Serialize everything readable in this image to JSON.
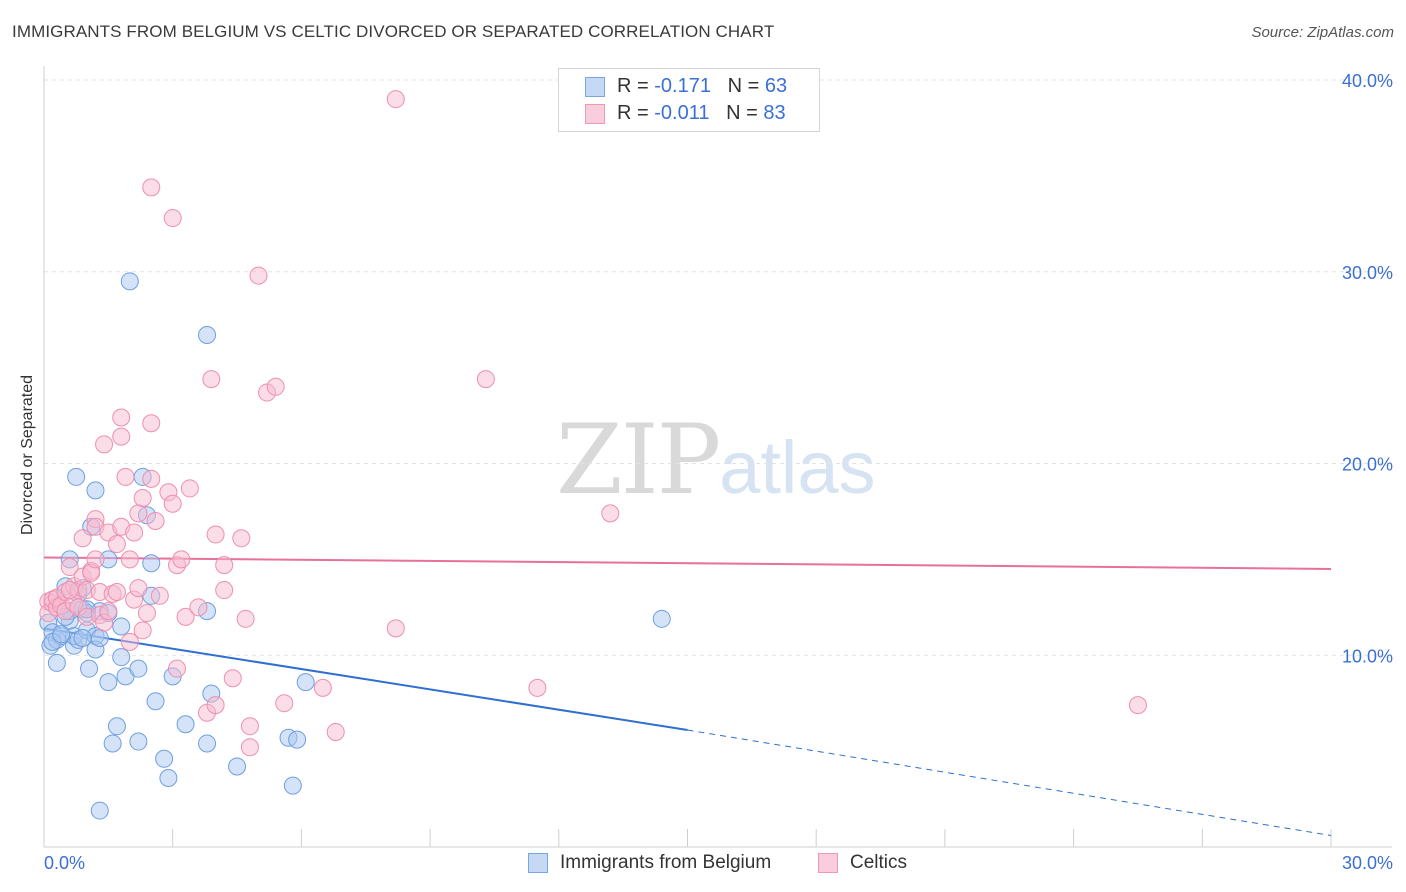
{
  "title": "IMMIGRANTS FROM BELGIUM VS CELTIC DIVORCED OR SEPARATED CORRELATION CHART",
  "source": "Source: ZipAtlas.com",
  "watermark": {
    "zip": "ZIP",
    "atlas": "atlas"
  },
  "legend_top": [
    {
      "r_label": "R = ",
      "r_value": "-0.171",
      "n_label": "N = ",
      "n_value": "63"
    },
    {
      "r_label": "R = ",
      "r_value": "-0.011",
      "n_label": "N = ",
      "n_value": "83"
    }
  ],
  "legend_bottom": [
    "Immigrants from Belgium",
    "Celtics"
  ],
  "colors": {
    "blue_fill": "#a9c8f0",
    "blue_stroke": "#6f9fe0",
    "blue_line": "#2e6fd0",
    "pink_fill": "#f8bcd0",
    "pink_stroke": "#ee8fae",
    "pink_line": "#e8709a",
    "tick_label": "#3b6fd4",
    "grid": "#e2e2e2"
  },
  "chart_data": {
    "type": "scatter",
    "title": "IMMIGRANTS FROM BELGIUM VS CELTIC DIVORCED OR SEPARATED CORRELATION CHART",
    "xlabel": "",
    "ylabel": "Divorced or Separated",
    "xlim": [
      0,
      30
    ],
    "ylim": [
      0,
      40
    ],
    "x_tick_labels": [
      "0.0%",
      "30.0%"
    ],
    "y_ticks": [
      10,
      20,
      30,
      40
    ],
    "y_tick_labels": [
      "10.0%",
      "20.0%",
      "30.0%",
      "40.0%"
    ],
    "grid": true,
    "series": [
      {
        "name": "Immigrants from Belgium",
        "R": -0.171,
        "N": 63,
        "trend": {
          "x0": 0,
          "y0": 11.4,
          "x1": 15,
          "y1": 6.1,
          "dashed_to_x": 30,
          "dashed_to_y": 0.6
        },
        "points": [
          [
            0.1,
            11.7
          ],
          [
            0.2,
            11.2
          ],
          [
            0.15,
            10.5
          ],
          [
            0.3,
            9.6
          ],
          [
            0.3,
            10.8
          ],
          [
            0.4,
            11.0
          ],
          [
            0.5,
            13.6
          ],
          [
            0.6,
            15.0
          ],
          [
            0.6,
            11.8
          ],
          [
            0.6,
            12.3
          ],
          [
            0.7,
            10.5
          ],
          [
            0.7,
            11.0
          ],
          [
            0.8,
            13.2
          ],
          [
            0.8,
            10.8
          ],
          [
            0.75,
            19.3
          ],
          [
            0.9,
            13.5
          ],
          [
            0.9,
            12.4
          ],
          [
            1.0,
            12.2
          ],
          [
            1.0,
            11.3
          ],
          [
            1.05,
            9.3
          ],
          [
            1.1,
            16.7
          ],
          [
            1.2,
            11.0
          ],
          [
            1.2,
            10.3
          ],
          [
            1.2,
            18.6
          ],
          [
            1.3,
            12.3
          ],
          [
            1.3,
            10.9
          ],
          [
            1.5,
            12.2
          ],
          [
            1.5,
            8.6
          ],
          [
            1.5,
            15.0
          ],
          [
            1.6,
            5.4
          ],
          [
            1.7,
            6.3
          ],
          [
            1.8,
            11.5
          ],
          [
            1.8,
            9.9
          ],
          [
            1.9,
            8.9
          ],
          [
            1.3,
            1.9
          ],
          [
            2.0,
            29.5
          ],
          [
            2.2,
            5.5
          ],
          [
            2.2,
            9.3
          ],
          [
            2.3,
            19.3
          ],
          [
            2.4,
            17.3
          ],
          [
            2.5,
            13.1
          ],
          [
            2.5,
            14.8
          ],
          [
            2.6,
            7.6
          ],
          [
            2.8,
            4.6
          ],
          [
            2.9,
            3.6
          ],
          [
            3.0,
            8.9
          ],
          [
            3.3,
            6.4
          ],
          [
            3.8,
            12.3
          ],
          [
            3.8,
            26.7
          ],
          [
            3.8,
            5.4
          ],
          [
            3.9,
            8.0
          ],
          [
            4.5,
            4.2
          ],
          [
            5.7,
            5.7
          ],
          [
            5.8,
            3.2
          ],
          [
            5.9,
            5.6
          ],
          [
            6.1,
            8.6
          ],
          [
            14.4,
            11.9
          ],
          [
            0.2,
            10.7
          ],
          [
            0.5,
            12.0
          ],
          [
            0.9,
            10.9
          ],
          [
            1.0,
            12.4
          ],
          [
            0.4,
            11.1
          ],
          [
            0.3,
            13.0
          ]
        ]
      },
      {
        "name": "Celtics",
        "R": -0.011,
        "N": 83,
        "trend": {
          "x0": 0,
          "y0": 15.1,
          "x1": 30,
          "y1": 14.5
        },
        "points": [
          [
            0.1,
            12.8
          ],
          [
            0.1,
            12.2
          ],
          [
            0.2,
            12.7
          ],
          [
            0.2,
            12.9
          ],
          [
            0.3,
            12.5
          ],
          [
            0.3,
            13.0
          ],
          [
            0.4,
            12.6
          ],
          [
            0.5,
            12.3
          ],
          [
            0.5,
            13.3
          ],
          [
            0.6,
            14.6
          ],
          [
            0.7,
            12.7
          ],
          [
            0.7,
            13.6
          ],
          [
            0.8,
            13.4
          ],
          [
            0.8,
            12.5
          ],
          [
            0.9,
            14.1
          ],
          [
            0.9,
            16.1
          ],
          [
            1.0,
            12.0
          ],
          [
            1.0,
            13.4
          ],
          [
            1.1,
            14.4
          ],
          [
            1.1,
            14.3
          ],
          [
            1.2,
            15.0
          ],
          [
            1.2,
            17.1
          ],
          [
            1.2,
            16.7
          ],
          [
            1.3,
            13.3
          ],
          [
            1.3,
            12.1
          ],
          [
            1.4,
            11.7
          ],
          [
            1.4,
            21.0
          ],
          [
            1.5,
            12.3
          ],
          [
            1.5,
            16.4
          ],
          [
            1.6,
            13.2
          ],
          [
            1.7,
            15.8
          ],
          [
            1.7,
            13.3
          ],
          [
            1.8,
            16.7
          ],
          [
            1.8,
            22.4
          ],
          [
            1.8,
            21.4
          ],
          [
            1.9,
            19.3
          ],
          [
            2.0,
            10.7
          ],
          [
            2.0,
            15.0
          ],
          [
            2.1,
            16.4
          ],
          [
            2.1,
            12.9
          ],
          [
            2.2,
            17.4
          ],
          [
            2.2,
            13.5
          ],
          [
            2.3,
            18.2
          ],
          [
            2.3,
            11.3
          ],
          [
            2.4,
            12.2
          ],
          [
            2.5,
            19.2
          ],
          [
            2.5,
            22.1
          ],
          [
            2.5,
            34.4
          ],
          [
            2.6,
            17.0
          ],
          [
            2.7,
            13.1
          ],
          [
            2.9,
            18.5
          ],
          [
            3.0,
            17.9
          ],
          [
            3.0,
            32.8
          ],
          [
            3.1,
            14.7
          ],
          [
            3.1,
            9.3
          ],
          [
            3.2,
            15.0
          ],
          [
            3.3,
            12.0
          ],
          [
            3.4,
            18.7
          ],
          [
            3.6,
            12.5
          ],
          [
            3.8,
            7.0
          ],
          [
            3.9,
            24.4
          ],
          [
            4.0,
            16.3
          ],
          [
            4.0,
            7.4
          ],
          [
            4.2,
            13.4
          ],
          [
            4.2,
            14.7
          ],
          [
            4.4,
            8.8
          ],
          [
            4.6,
            16.1
          ],
          [
            4.7,
            11.9
          ],
          [
            4.8,
            5.2
          ],
          [
            4.8,
            6.3
          ],
          [
            5.0,
            29.8
          ],
          [
            5.2,
            23.7
          ],
          [
            5.4,
            24.0
          ],
          [
            5.6,
            7.5
          ],
          [
            6.5,
            8.3
          ],
          [
            6.8,
            6.0
          ],
          [
            8.2,
            39.0
          ],
          [
            8.2,
            11.4
          ],
          [
            10.3,
            24.4
          ],
          [
            11.5,
            8.3
          ],
          [
            13.2,
            17.4
          ],
          [
            25.5,
            7.4
          ],
          [
            0.6,
            13.4
          ]
        ]
      }
    ]
  }
}
